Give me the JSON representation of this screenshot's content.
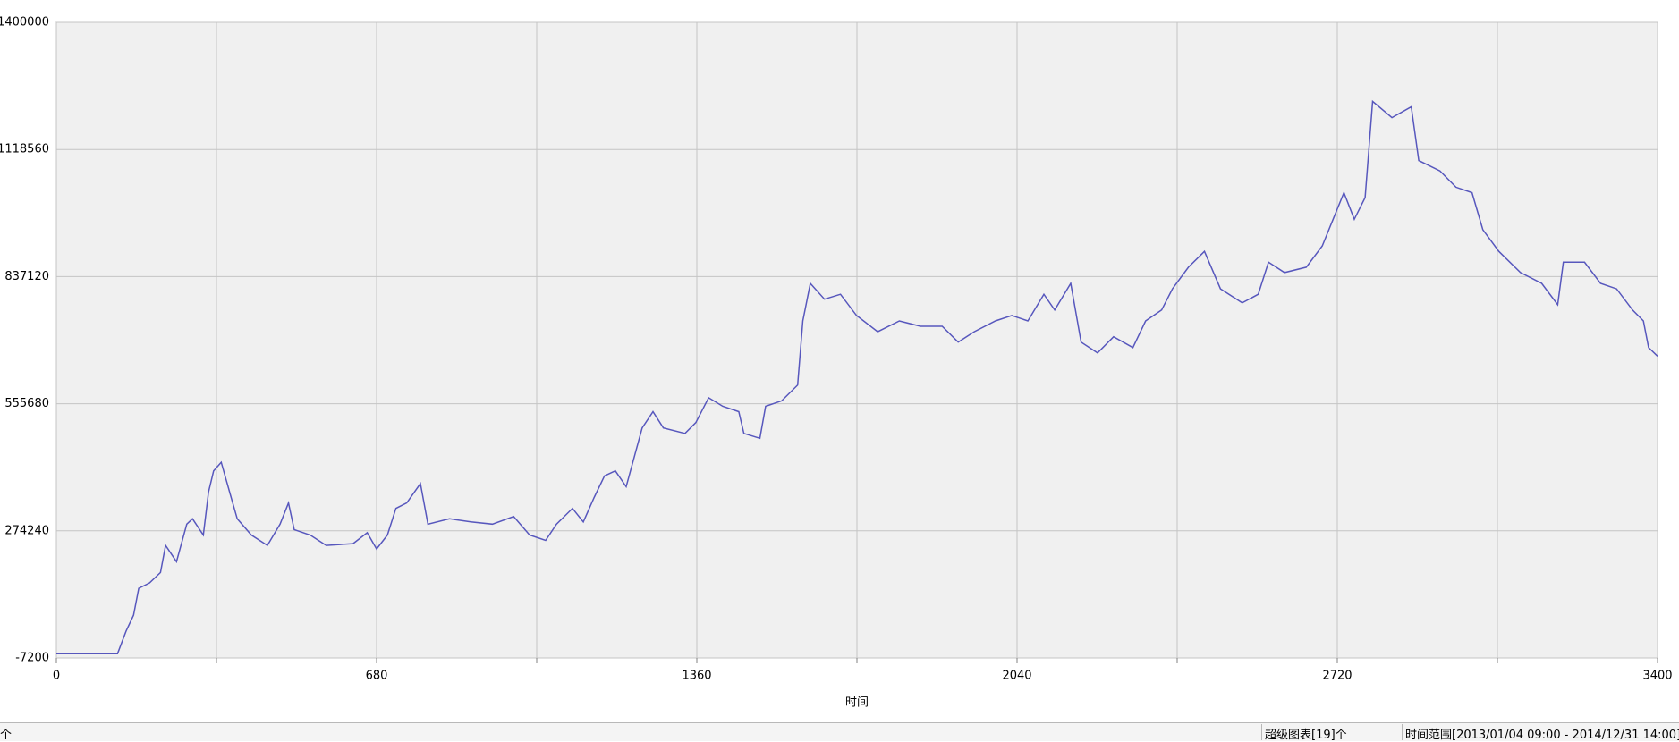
{
  "chart_data": {
    "type": "line",
    "x_label": "时间",
    "x": [
      0,
      130,
      148,
      164,
      175,
      198,
      221,
      232,
      255,
      277,
      289,
      312,
      323,
      334,
      350,
      368,
      384,
      414,
      448,
      475,
      493,
      505,
      539,
      573,
      630,
      660,
      680,
      703,
      721,
      744,
      773,
      789,
      835,
      880,
      926,
      971,
      1005,
      1039,
      1062,
      1096,
      1119,
      1142,
      1164,
      1187,
      1210,
      1244,
      1267,
      1289,
      1335,
      1358,
      1385,
      1415,
      1449,
      1460,
      1494,
      1506,
      1540,
      1574,
      1585,
      1601,
      1631,
      1665,
      1699,
      1744,
      1790,
      1835,
      1881,
      1915,
      1949,
      1994,
      2029,
      2063,
      2097,
      2120,
      2154,
      2176,
      2211,
      2245,
      2286,
      2313,
      2347,
      2370,
      2404,
      2438,
      2472,
      2518,
      2552,
      2574,
      2608,
      2654,
      2688,
      2711,
      2734,
      2756,
      2779,
      2795,
      2836,
      2877,
      2893,
      2938,
      2972,
      3006,
      3029,
      3063,
      3109,
      3154,
      3188,
      3200,
      3245,
      3279,
      3313,
      3347,
      3370,
      3381,
      3400
    ],
    "series": [
      {
        "color": "#5757bd",
        "values": [
          2300,
          2300,
          52000,
          87600,
          147000,
          159000,
          182000,
          242000,
          206000,
          289000,
          301000,
          265000,
          360000,
          407000,
          426000,
          360000,
          301000,
          265000,
          242000,
          289000,
          336000,
          277000,
          265000,
          242000,
          246000,
          270000,
          234000,
          265000,
          324000,
          336000,
          379000,
          289000,
          301000,
          294000,
          289000,
          306000,
          265000,
          253000,
          289000,
          324000,
          294000,
          348000,
          396000,
          407000,
          372000,
          502000,
          538000,
          502000,
          490000,
          514000,
          569000,
          550000,
          538000,
          490000,
          479000,
          550000,
          562000,
          597000,
          739000,
          822000,
          787000,
          798000,
          751000,
          715000,
          739000,
          727000,
          727000,
          692000,
          715000,
          739000,
          751000,
          739000,
          798000,
          763000,
          822000,
          692000,
          668000,
          704000,
          680000,
          739000,
          763000,
          810000,
          858000,
          893000,
          810000,
          779000,
          798000,
          869000,
          846000,
          858000,
          905000,
          964000,
          1023000,
          964000,
          1012000,
          1225000,
          1189000,
          1213000,
          1094000,
          1071000,
          1035000,
          1023000,
          941000,
          893000,
          846000,
          822000,
          775000,
          869000,
          869000,
          822000,
          810000,
          763000,
          739000,
          680000,
          661000
        ]
      }
    ],
    "xlim": [
      0,
      3400
    ],
    "xticks": [
      0,
      680,
      1360,
      2040,
      2720,
      3400
    ],
    "ylim": [
      -7200,
      1400000
    ],
    "yticks": [
      -7200,
      274240,
      555680,
      837120,
      1118560,
      1400000
    ],
    "grid": true,
    "minor_x_grid": true
  },
  "status_bar": {
    "left": "个",
    "chart_count": "超级图表[19]个",
    "time_range": "时间范围[2013/01/04 09:00 - 2014/12/31 14:00]"
  }
}
